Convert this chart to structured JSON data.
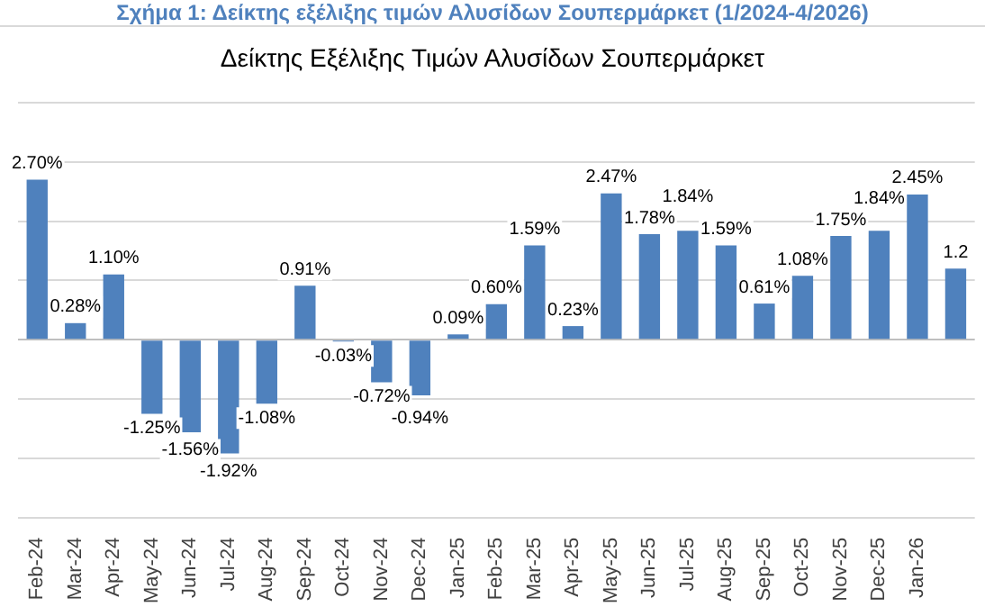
{
  "chart_data": {
    "type": "bar",
    "title": "Σχήμα 1: Δείκτης εξέλιξης τιμών Αλυσίδων Σουπερμάρκετ (1/2024-4/2026)",
    "subtitle": "Δείκτης Εξέλιξης Τιμών Αλυσίδων Σουπερμάρκετ",
    "categories": [
      "Feb-24",
      "Mar-24",
      "Apr-24",
      "May-24",
      "Jun-24",
      "Jul-24",
      "Aug-24",
      "Sep-24",
      "Oct-24",
      "Nov-24",
      "Dec-24",
      "Jan-25",
      "Feb-25",
      "Mar-25",
      "Apr-25",
      "May-25",
      "Jun-25",
      "Jul-25",
      "Aug-25",
      "Sep-25",
      "Oct-25",
      "Nov-25",
      "Dec-25",
      "Jan-26",
      null
    ],
    "values": [
      2.7,
      0.28,
      1.1,
      -1.25,
      -1.56,
      -1.92,
      -1.08,
      0.91,
      -0.03,
      -0.72,
      -0.94,
      0.09,
      0.6,
      1.59,
      0.23,
      2.47,
      1.78,
      1.84,
      1.59,
      0.61,
      1.08,
      1.75,
      1.84,
      2.45,
      1.2
    ],
    "value_labels": [
      "2.70%",
      "0.28%",
      "1.10%",
      "-1.25%",
      "-1.56%",
      "-1.92%",
      "-1.08%",
      "0.91%",
      "-0.03%",
      "-0.72%",
      "-0.94%",
      "0.09%",
      "0.60%",
      "1.59%",
      "0.23%",
      "2.47%",
      "1.78%",
      "1.84%",
      "1.59%",
      "0.61%",
      "1.08%",
      "1.75%",
      "1.84%",
      "2.45%",
      "1.2"
    ],
    "color": "#4f81bd",
    "ylim": [
      -3,
      4
    ],
    "yticks": [
      {
        "value": -3,
        "label": null
      },
      {
        "value": -2,
        "label": null
      },
      {
        "value": -1,
        "label": null
      },
      {
        "value": 0,
        "label": null
      },
      {
        "value": 1,
        "label": null
      },
      {
        "value": 2,
        "label": null
      },
      {
        "value": 3,
        "label": null
      },
      {
        "value": 4,
        "label": null
      }
    ],
    "tick_labels": "x",
    "grid": "y",
    "legend": false
  }
}
